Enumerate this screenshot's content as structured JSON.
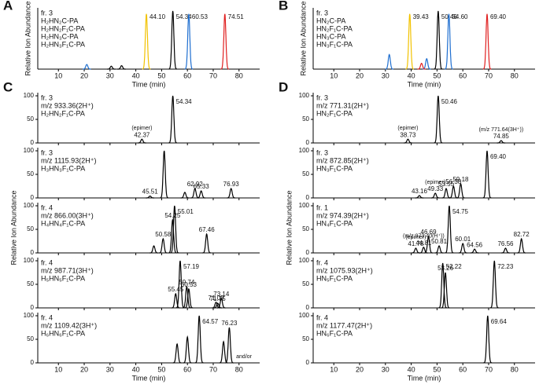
{
  "chart_data": [
    {
      "type": "line",
      "label": "A",
      "xlabel": "Time (min)",
      "ylabel": "Relative Ion Abundance",
      "xlim": [
        2,
        88
      ],
      "xticks": [
        10,
        20,
        30,
        40,
        50,
        60,
        70,
        80
      ],
      "ylim": [
        0,
        100
      ],
      "plots": [
        {
          "fraction": "fr. 3",
          "series": [
            {
              "name": "H₂HN₂C-PA",
              "color": "#f2c200",
              "x": [
                44.1
              ],
              "values": [
                95
              ],
              "peak_labels": [
                "44.10"
              ]
            },
            {
              "name": "H₂HN₂F₁C-PA",
              "color": "#000000",
              "x": [
                30.5,
                34.5,
                54.34
              ],
              "values": [
                5,
                6,
                100
              ],
              "peak_labels": [
                null,
                null,
                "54.34"
              ]
            },
            {
              "name": "H₂HN₃C-PA",
              "color": "#1f6fd0",
              "x": [
                21,
                60.53
              ],
              "values": [
                8,
                95
              ],
              "peak_labels": [
                null,
                "60.53"
              ]
            },
            {
              "name": "H₂HN₃F₁C-PA",
              "color": "#e02020",
              "x": [
                74.51
              ],
              "values": [
                95
              ],
              "peak_labels": [
                "74.51"
              ]
            }
          ]
        }
      ]
    },
    {
      "type": "line",
      "label": "B",
      "xlabel": "Time (min)",
      "ylabel": "Relative Ion Abundance",
      "xlim": [
        2,
        88
      ],
      "xticks": [
        10,
        20,
        30,
        40,
        50,
        60,
        70,
        80
      ],
      "ylim": [
        0,
        100
      ],
      "plots": [
        {
          "fraction": "fr. 3",
          "series": [
            {
              "name": "HN₂C-PA",
              "color": "#f2c200",
              "x": [
                39.43
              ],
              "values": [
                95
              ],
              "peak_labels": [
                "39.43"
              ]
            },
            {
              "name": "HN₂F₁C-PA",
              "color": "#000000",
              "x": [
                50.46
              ],
              "values": [
                100
              ],
              "peak_labels": [
                "50.46"
              ]
            },
            {
              "name": "HN₃C-PA",
              "color": "#1f6fd0",
              "x": [
                31.5,
                46,
                54.6
              ],
              "values": [
                25,
                18,
                95
              ],
              "peak_labels": [
                null,
                null,
                "54.60"
              ]
            },
            {
              "name": "HN₃F₁C-PA",
              "color": "#e02020",
              "x": [
                44,
                69.4
              ],
              "values": [
                10,
                95
              ],
              "peak_labels": [
                null,
                "69.40"
              ]
            }
          ]
        }
      ]
    },
    {
      "type": "line",
      "label": "C",
      "xlabel": "Time (min)",
      "ylabel": "Relative Ion Abundance",
      "xlim": [
        2,
        88
      ],
      "xticks": [
        10,
        20,
        30,
        40,
        50,
        60,
        70,
        80
      ],
      "ylim": [
        0,
        100
      ],
      "yticks": [
        0,
        50,
        100
      ],
      "plots": [
        {
          "fraction": "fr. 3",
          "mz": "m/z 933.36(2H⁺)",
          "series": [
            {
              "name": "H₂HN₂F₁C-PA",
              "color": "#000000",
              "x": [
                42.37,
                54.34
              ],
              "values": [
                8,
                100
              ],
              "peak_labels": [
                "42.37",
                "54.34"
              ],
              "peak_notes": [
                "(epimer)",
                null
              ]
            }
          ]
        },
        {
          "fraction": "fr. 3",
          "mz": "m/z 1115.93(2H⁺)",
          "series": [
            {
              "name": "H₃HN₃F₁C-PA",
              "color": "#000000",
              "x": [
                45.51,
                51.0,
                59,
                62.92,
                65.33,
                76.93
              ],
              "values": [
                4,
                100,
                12,
                20,
                15,
                20
              ],
              "peak_labels": [
                "45.51",
                null,
                null,
                "62.92",
                "65.33",
                "76.93"
              ]
            }
          ]
        },
        {
          "fraction": "fr. 4",
          "mz": "m/z 866.00(3H⁺)",
          "series": [
            {
              "name": "H₄HN₄F₁C-PA",
              "color": "#000000",
              "x": [
                47,
                50.58,
                54.25,
                55.01,
                67.46
              ],
              "values": [
                15,
                30,
                70,
                100,
                40
              ],
              "peak_labels": [
                null,
                "50.58",
                "54.25",
                "55.01",
                "67.46"
              ]
            }
          ]
        },
        {
          "fraction": "fr. 4",
          "mz": "m/z 987.71(3H⁺)",
          "series": [
            {
              "name": "H₅HN₅F₁C-PA",
              "color": "#000000",
              "x": [
                55.45,
                57.19,
                59.74,
                60.53,
                71.09,
                71.75,
                73.14
              ],
              "values": [
                30,
                100,
                45,
                40,
                12,
                10,
                20
              ],
              "peak_labels": [
                "55.45",
                "57.19",
                "59.74",
                "60.53",
                "71.09",
                "71.75",
                "73.14"
              ]
            }
          ]
        },
        {
          "fraction": "fr. 4",
          "mz": "m/z 1109.42(3H⁺)",
          "note": "and/or",
          "series": [
            {
              "name": "H₆HN₆F₁C-PA",
              "color": "#000000",
              "x": [
                56,
                60,
                64.57,
                74,
                76.23
              ],
              "values": [
                40,
                55,
                100,
                45,
                75
              ],
              "peak_labels": [
                null,
                null,
                "64.57",
                null,
                "76.23"
              ]
            }
          ]
        }
      ]
    },
    {
      "type": "line",
      "label": "D",
      "xlabel": "Time (min)",
      "ylabel": "Relative Ion Abundance",
      "xlim": [
        2,
        88
      ],
      "xticks": [
        10,
        20,
        30,
        40,
        50,
        60,
        70,
        80
      ],
      "ylim": [
        0,
        100
      ],
      "yticks": [
        0,
        50,
        100
      ],
      "plots": [
        {
          "fraction": "fr. 3",
          "mz": "m/z 771.31(2H⁺)",
          "series": [
            {
              "name": "HN₂F₁C-PA",
              "color": "#000000",
              "x": [
                38.73,
                50.46,
                74.85
              ],
              "values": [
                8,
                100,
                5
              ],
              "peak_labels": [
                "38.73",
                "50.46",
                "74.85"
              ],
              "peak_notes": [
                "(epimer)",
                null,
                "(m/z 771.64(3H⁺))"
              ]
            }
          ]
        },
        {
          "fraction": "fr. 3",
          "mz": "m/z 872.85(2H⁺)",
          "series": [
            {
              "name": "HN₃F₁C-PA",
              "color": "#000000",
              "x": [
                43.16,
                49.33,
                53.55,
                56.38,
                59.18,
                69.4
              ],
              "values": [
                5,
                10,
                20,
                25,
                30,
                100
              ],
              "peak_labels": [
                "43.16",
                "49.33",
                "53.55",
                "56.38",
                "59.18",
                "69.40"
              ],
              "peak_notes": [
                null,
                "(epimer)",
                null,
                null,
                null,
                null
              ]
            }
          ]
        },
        {
          "fraction": "fr. 1",
          "mz": "m/z 974.39(2H⁺)",
          "series": [
            {
              "name": "HN₄F₁C-PA",
              "color": "#000000",
              "x": [
                41.78,
                44.81,
                46.69,
                50.81,
                54.75,
                60.01,
                64.56,
                76.56,
                82.72
              ],
              "values": [
                10,
                12,
                35,
                15,
                100,
                20,
                8,
                10,
                30
              ],
              "peak_labels": [
                "41.78",
                "44.81",
                "46.69",
                "50.81",
                "54.75",
                "60.01",
                "64.56",
                "76.56",
                "82.72"
              ],
              "peak_notes": [
                "(epimer)",
                "(m/z 973.40(H⁺))",
                null,
                null,
                null,
                null,
                null,
                null,
                null
              ]
            }
          ]
        },
        {
          "fraction": "fr. 4",
          "mz": "m/z 1075.93(2H⁺)",
          "series": [
            {
              "name": "HN₅F₁C-PA",
              "color": "#000000",
              "x": [
                52.22,
                53.26,
                72.23
              ],
              "values": [
                95,
                75,
                100
              ],
              "peak_labels": [
                "52.22",
                "53.26",
                "72.23"
              ]
            }
          ]
        },
        {
          "fraction": "fr. 4",
          "mz": "m/z 1177.47(2H⁺)",
          "series": [
            {
              "name": "HN₆F₁C-PA",
              "color": "#000000",
              "x": [
                69.64
              ],
              "values": [
                100
              ],
              "peak_labels": [
                "69.64"
              ]
            }
          ]
        }
      ]
    }
  ]
}
